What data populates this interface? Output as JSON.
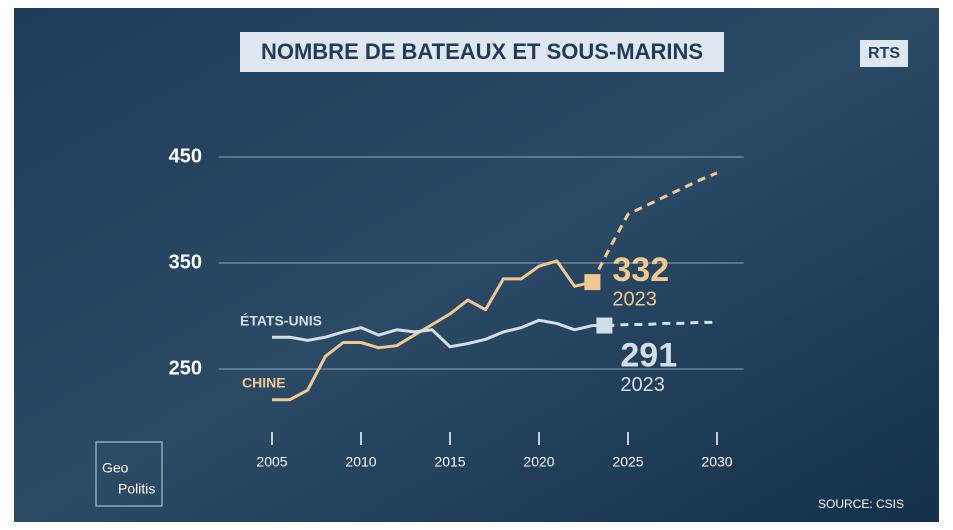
{
  "chart_data": {
    "type": "line",
    "title": "NOMBRE DE BATEAUX ET SOUS-MARINS",
    "brand": "RTS",
    "source": "SOURCE: CSIS",
    "logo": [
      "Geo",
      "Politis"
    ],
    "x": [
      2005,
      2006,
      2007,
      2008,
      2009,
      2010,
      2011,
      2012,
      2013,
      2014,
      2015,
      2016,
      2017,
      2018,
      2019,
      2020,
      2021,
      2022,
      2023,
      2024,
      2025,
      2026,
      2027,
      2028,
      2029,
      2030
    ],
    "series": [
      {
        "name": "CHINE",
        "color": "#f3c88e",
        "values": [
          221,
          221,
          230,
          262,
          275,
          275,
          270,
          272,
          282,
          292,
          302,
          315,
          306,
          335,
          335,
          347,
          352,
          328,
          332,
          null,
          null,
          null,
          null,
          null,
          null,
          null
        ],
        "projection": [
          null,
          null,
          null,
          null,
          null,
          null,
          null,
          null,
          null,
          null,
          null,
          null,
          null,
          null,
          null,
          null,
          null,
          null,
          332,
          365,
          396,
          404,
          412,
          420,
          428,
          435
        ]
      },
      {
        "name": "ÉTATS-UNIS",
        "color": "#d3dee9",
        "values": [
          280,
          280,
          277,
          280,
          285,
          289,
          282,
          287,
          285,
          287,
          271,
          274,
          278,
          285,
          289,
          296,
          293,
          287,
          291,
          null,
          null,
          null,
          null,
          null,
          null,
          null
        ],
        "projection": [
          null,
          null,
          null,
          null,
          null,
          null,
          null,
          null,
          null,
          null,
          null,
          null,
          null,
          null,
          null,
          null,
          null,
          null,
          291,
          291,
          292,
          292,
          293,
          293,
          294,
          294
        ]
      }
    ],
    "xlim": [
      2002,
      2031.5
    ],
    "xticks": [
      2005,
      2010,
      2015,
      2020,
      2025,
      2030
    ],
    "ylim": [
      200,
      470
    ],
    "yticks": [
      250,
      350,
      450
    ],
    "grid": true
  }
}
